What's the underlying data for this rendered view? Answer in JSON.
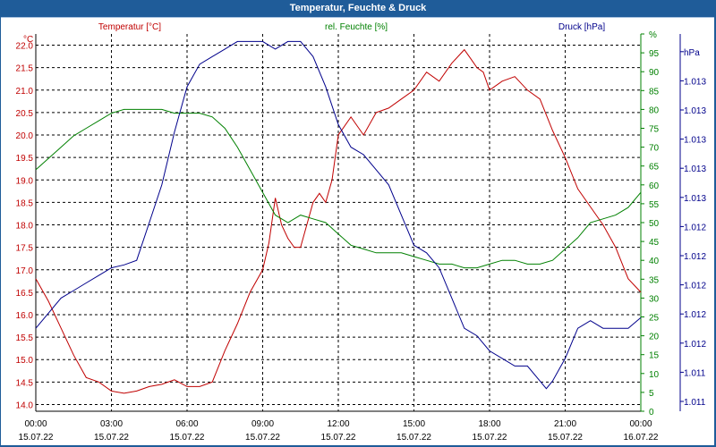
{
  "window": {
    "title": "Temperatur, Feuchte & Druck"
  },
  "colors": {
    "temp": "#c00000",
    "humid": "#008000",
    "press": "#00008b",
    "grid": "#000000",
    "text": "#000000",
    "titlebar": "#1f5c99"
  },
  "chart_data": {
    "type": "line",
    "title": "Temperatur, Feuchte & Druck",
    "x_ticks": [
      {
        "time": "00:00",
        "date": "15.07.22"
      },
      {
        "time": "03:00",
        "date": "15.07.22"
      },
      {
        "time": "06:00",
        "date": "15.07.22"
      },
      {
        "time": "09:00",
        "date": "15.07.22"
      },
      {
        "time": "12:00",
        "date": "15.07.22"
      },
      {
        "time": "15:00",
        "date": "15.07.22"
      },
      {
        "time": "18:00",
        "date": "15.07.22"
      },
      {
        "time": "21:00",
        "date": "15.07.22"
      },
      {
        "time": "00:00",
        "date": "16.07.22"
      }
    ],
    "xlim_hours": [
      0,
      24
    ],
    "axes": {
      "temp": {
        "label": "Temperatur [°C]",
        "unit": "°C",
        "ylim": [
          13.85,
          22.25
        ],
        "ticks": [
          "14.0",
          "14.5",
          "15.0",
          "15.5",
          "16.0",
          "16.5",
          "17.0",
          "17.5",
          "18.0",
          "18.5",
          "19.0",
          "19.5",
          "20.0",
          "20.5",
          "21.0",
          "21.5",
          "22.0"
        ]
      },
      "humid": {
        "label": "rel. Feuchte [%]",
        "unit": "%",
        "ylim": [
          0,
          100
        ],
        "ticks": [
          "0",
          "5",
          "10",
          "15",
          "20",
          "25",
          "30",
          "35",
          "40",
          "45",
          "50",
          "55",
          "60",
          "65",
          "70",
          "75",
          "80",
          "85",
          "90",
          "95",
          "%"
        ]
      },
      "press": {
        "label": "Druck [hPa]",
        "unit": "hPa",
        "ylim": [
          1011.0,
          1013.5
        ],
        "ticks": [
          "1.011",
          "1.011",
          "1.012",
          "1.012",
          "1.012",
          "1.012",
          "1.012",
          "1.013",
          "1.013",
          "1.013",
          "1.013",
          "1.013",
          "hPa"
        ]
      }
    },
    "series": [
      {
        "name": "Temperatur [°C]",
        "axis": "temp",
        "x": [
          0,
          0.5,
          1,
          1.5,
          2,
          2.5,
          3,
          3.5,
          4,
          4.5,
          5,
          5.5,
          6,
          6.5,
          7,
          7.5,
          8,
          8.5,
          9,
          9.25,
          9.5,
          9.75,
          10,
          10.25,
          10.5,
          10.75,
          11,
          11.25,
          11.5,
          11.75,
          12,
          12.5,
          13,
          13.5,
          14,
          14.5,
          15,
          15.5,
          16,
          16.5,
          17,
          17.25,
          17.5,
          17.75,
          18,
          18.5,
          19,
          19.5,
          20,
          20.5,
          21,
          21.5,
          22,
          22.5,
          23,
          23.5,
          24
        ],
        "values": [
          16.8,
          16.3,
          15.7,
          15.1,
          14.6,
          14.5,
          14.3,
          14.25,
          14.3,
          14.4,
          14.45,
          14.55,
          14.4,
          14.4,
          14.5,
          15.2,
          15.8,
          16.5,
          17.0,
          17.6,
          18.6,
          18.0,
          17.7,
          17.5,
          17.5,
          18.0,
          18.5,
          18.7,
          18.5,
          19.0,
          20.0,
          20.4,
          20.0,
          20.5,
          20.6,
          20.8,
          21.0,
          21.4,
          21.2,
          21.6,
          21.9,
          21.7,
          21.5,
          21.4,
          21.0,
          21.2,
          21.3,
          21.0,
          20.8,
          20.1,
          19.5,
          18.8,
          18.4,
          18.0,
          17.5,
          16.8,
          16.5
        ]
      },
      {
        "name": "rel. Feuchte [%]",
        "axis": "humid",
        "x": [
          0,
          0.5,
          1,
          1.5,
          2,
          2.5,
          3,
          3.5,
          4,
          4.5,
          5,
          5.5,
          6,
          6.5,
          7,
          7.5,
          8,
          8.5,
          9,
          9.5,
          10,
          10.5,
          11,
          11.5,
          12,
          12.5,
          13,
          13.5,
          14,
          14.5,
          15,
          15.5,
          16,
          16.5,
          17,
          17.5,
          18,
          18.5,
          19,
          19.5,
          20,
          20.5,
          21,
          21.5,
          22,
          22.5,
          23,
          23.5,
          24
        ],
        "values": [
          64,
          67,
          70,
          73,
          75,
          77,
          79,
          80,
          80,
          80,
          80,
          79,
          79,
          79,
          78,
          75,
          70,
          64,
          58,
          52,
          50,
          52,
          51,
          50,
          47,
          44,
          43,
          42,
          42,
          42,
          41,
          40,
          39,
          39,
          38,
          38,
          39,
          40,
          40,
          39,
          39,
          40,
          43,
          46,
          50,
          51,
          52,
          54,
          58
        ]
      },
      {
        "name": "Druck [hPa]",
        "axis": "press",
        "x": [
          0,
          0.5,
          1,
          1.5,
          2,
          2.5,
          3,
          3.5,
          4,
          4.5,
          5,
          5.5,
          6,
          6.5,
          7,
          7.5,
          8,
          8.5,
          9,
          9.5,
          10,
          10.5,
          11,
          11.5,
          12,
          12.5,
          13,
          13.5,
          14,
          14.5,
          15,
          15.5,
          16,
          16.5,
          17,
          17.5,
          18,
          18.5,
          19,
          19.5,
          20,
          20.25,
          20.5,
          21,
          21.5,
          22,
          22.5,
          23,
          23.5,
          24
        ],
        "values": [
          1011.55,
          1011.65,
          1011.75,
          1011.8,
          1011.85,
          1011.9,
          1011.95,
          1011.97,
          1012.0,
          1012.25,
          1012.5,
          1012.85,
          1013.15,
          1013.3,
          1013.35,
          1013.4,
          1013.45,
          1013.45,
          1013.45,
          1013.4,
          1013.45,
          1013.45,
          1013.35,
          1013.15,
          1012.9,
          1012.75,
          1012.7,
          1012.6,
          1012.5,
          1012.3,
          1012.1,
          1012.05,
          1011.95,
          1011.75,
          1011.55,
          1011.5,
          1011.4,
          1011.35,
          1011.3,
          1011.3,
          1011.2,
          1011.15,
          1011.2,
          1011.35,
          1011.55,
          1011.6,
          1011.55,
          1011.55,
          1011.55,
          1011.62
        ]
      }
    ],
    "grid": true
  }
}
